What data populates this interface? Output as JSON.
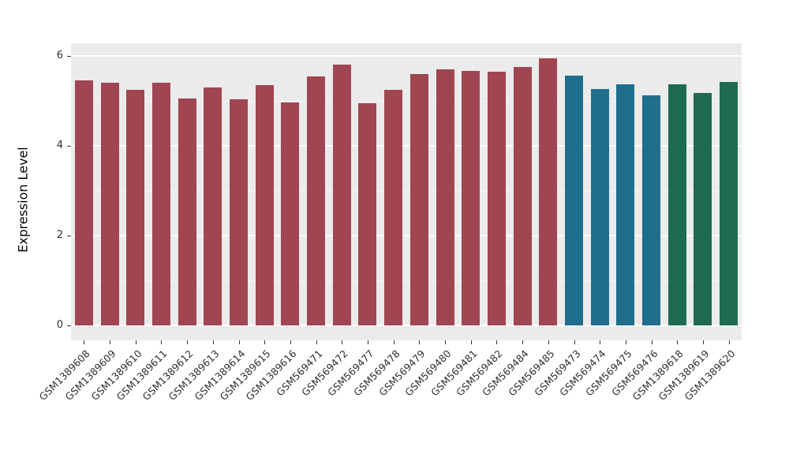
{
  "chart_data": {
    "type": "bar",
    "title": "",
    "xlabel": "",
    "ylabel": "Expression Level",
    "ylim": [
      0,
      6
    ],
    "yticks": [
      0,
      2,
      4,
      6
    ],
    "minor_ticks": [
      1,
      3,
      5
    ],
    "grid": true,
    "legend": "none",
    "panel_bg": "#ebebeb",
    "group_colors": {
      "group1": "#A04552",
      "group2": "#1F6E8C",
      "group3": "#1E6B50"
    },
    "categories": [
      "GSM1389608",
      "GSM1389609",
      "GSM1389610",
      "GSM1389611",
      "GSM1389612",
      "GSM1389613",
      "GSM1389614",
      "GSM1389615",
      "GSM1389616",
      "GSM569471",
      "GSM569472",
      "GSM569477",
      "GSM569478",
      "GSM569479",
      "GSM569480",
      "GSM569481",
      "GSM569482",
      "GSM569484",
      "GSM569485",
      "GSM569473",
      "GSM569474",
      "GSM569475",
      "GSM569476",
      "GSM1389618",
      "GSM1389619",
      "GSM1389620"
    ],
    "values": [
      5.45,
      5.4,
      5.25,
      5.4,
      5.05,
      5.3,
      5.03,
      5.35,
      4.97,
      5.55,
      5.8,
      4.95,
      5.25,
      5.6,
      5.7,
      5.67,
      5.65,
      5.75,
      5.95,
      5.57,
      5.27,
      5.37,
      5.12,
      5.37,
      5.17,
      5.42
    ],
    "bar_groups": [
      "group1",
      "group1",
      "group1",
      "group1",
      "group1",
      "group1",
      "group1",
      "group1",
      "group1",
      "group1",
      "group1",
      "group1",
      "group1",
      "group1",
      "group1",
      "group1",
      "group1",
      "group1",
      "group1",
      "group2",
      "group2",
      "group2",
      "group2",
      "group3",
      "group3",
      "group3"
    ]
  }
}
